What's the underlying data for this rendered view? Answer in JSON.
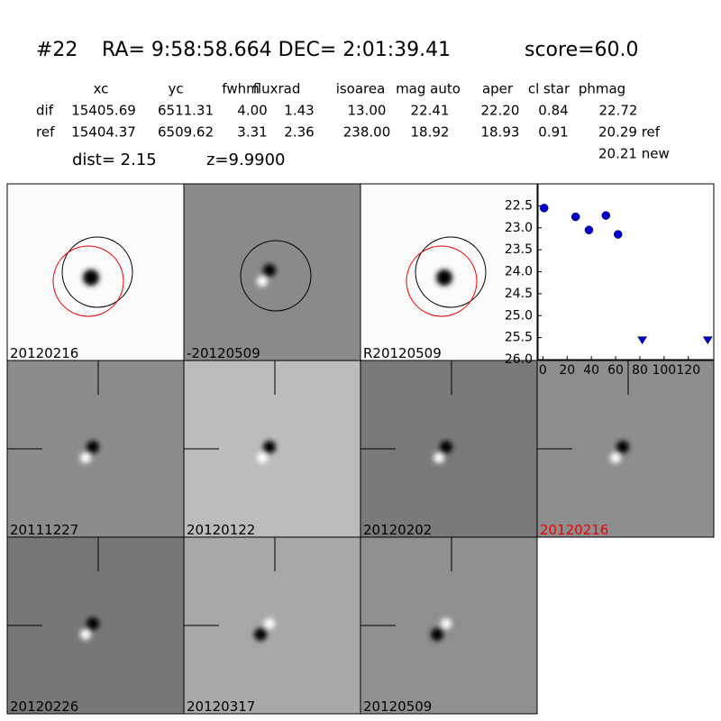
{
  "header": {
    "id": "#22",
    "coords": "RA= 9:58:58.664 DEC= 2:01:39.41",
    "score": "score=60.0"
  },
  "table": {
    "columns": [
      "xc",
      "yc",
      "fwhm",
      "fluxrad",
      "isoarea",
      "mag auto",
      "aper",
      "cl star",
      "phmag"
    ],
    "rows": [
      [
        "dif",
        "15405.69",
        "6511.31",
        "4.00",
        "1.43",
        "13.00",
        "22.41",
        "22.20",
        "0.84",
        "22.72"
      ],
      [
        "ref",
        "15404.37",
        "6509.62",
        "3.31",
        "2.36",
        "238.00",
        "18.92",
        "18.93",
        "0.91",
        "20.29 ref"
      ]
    ],
    "extra": "20.21 new"
  },
  "dist": "dist=  2.15",
  "z": "z=9.9900",
  "stamps": [
    "20120216",
    "-20120509",
    "R20120509",
    "20111227",
    "20120122",
    "20120202",
    "20120216",
    "20120226",
    "20120317",
    "20120509"
  ],
  "chart_data": {
    "type": "scatter",
    "series": [
      {
        "color": "#0000cc",
        "marker": "circle",
        "x": [
          1,
          27,
          38,
          52,
          62
        ],
        "values": [
          22.55,
          22.75,
          23.05,
          22.72,
          23.15
        ]
      },
      {
        "color": "#0000cc",
        "marker": "triangle",
        "x": [
          82,
          136
        ],
        "values": [
          25.5,
          25.5
        ]
      }
    ],
    "xlim": [
      -4,
      141
    ],
    "ylim": [
      26.0,
      22.0
    ],
    "xticks": [
      0,
      20,
      40,
      60,
      80,
      100,
      120
    ],
    "yticks": [
      {
        "value": 22.5,
        "label": "22.5"
      },
      {
        "value": 23,
        "label": "23.0"
      },
      {
        "value": 23.5,
        "label": "23.5"
      },
      {
        "value": 24,
        "label": "24.0"
      },
      {
        "value": 24.5,
        "label": "24.5"
      },
      {
        "value": 25,
        "label": "25.0"
      },
      {
        "value": 25.5,
        "label": "25.5"
      },
      {
        "value": 26,
        "label": "26.0"
      }
    ]
  }
}
